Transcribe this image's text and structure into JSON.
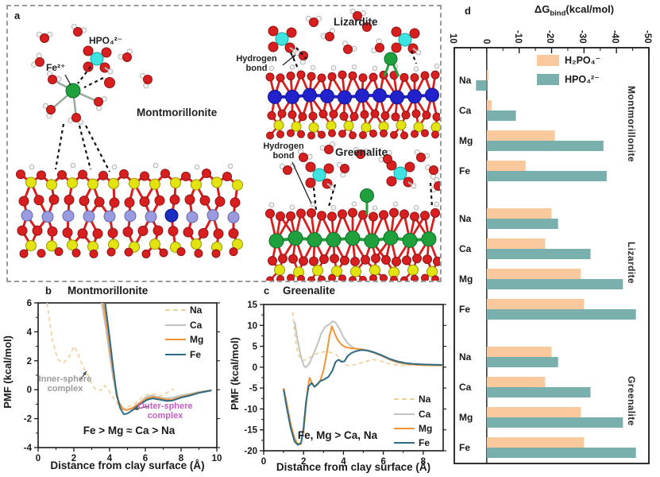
{
  "panel_a": {
    "label": "a",
    "minerals": {
      "montmorillonite": "Montmorillonite",
      "lizardite": "Lizardite",
      "greenalite": "Greenalite"
    },
    "molecule_labels": {
      "hpo4": "HPO₄²⁻",
      "fe": "Fe²⁺",
      "hydrogen_bond": "Hydrogen bond"
    },
    "atom_colors": {
      "oxygen": "#d81f1f",
      "hydrogen": "#f4f4f4",
      "silicon": "#e3e312",
      "aluminum": "#9a9ade",
      "magnesium": "#2222cc",
      "iron": "#1fa03c",
      "phosphorus": "#3fe3e0"
    }
  },
  "chart_data": [
    {
      "id": "b",
      "type": "line",
      "panel_label": "b",
      "title": "Montmorillonite",
      "xlabel": "Distance from clay surface (Å)",
      "ylabel": "PMF (kcal/mol)",
      "xlim": [
        0,
        10
      ],
      "ylim": [
        -4,
        6
      ],
      "xticks": [
        "0",
        "2",
        "4",
        "6",
        "8",
        "10"
      ],
      "yticks": [
        "6",
        "4",
        "2",
        "0",
        "-2",
        "-4"
      ],
      "legend_position": "top-right",
      "annotations": {
        "inner_sphere": "Inner-sphere complex",
        "outer_sphere": "Outer-sphere complex",
        "order": "Fe > Mg ≈ Ca > Na"
      },
      "annotation_colors": {
        "inner_sphere": "#9b9b9b",
        "outer_sphere": "#c45ec0",
        "order": "#1a1a1a"
      },
      "series": [
        {
          "name": "Na",
          "color": "#f0d09a",
          "dash": true,
          "points": [
            [
              0.5,
              6
            ],
            [
              0.8,
              3.4
            ],
            [
              1.1,
              2.1
            ],
            [
              1.4,
              1.85
            ],
            [
              1.7,
              2.2
            ],
            [
              2.0,
              3.0
            ],
            [
              2.2,
              2.6
            ],
            [
              2.5,
              1.6
            ],
            [
              2.8,
              1.0
            ],
            [
              3.0,
              0.4
            ],
            [
              3.2,
              0.05
            ],
            [
              3.5,
              -0.05
            ],
            [
              3.7,
              0.3
            ],
            [
              3.9,
              0.05
            ],
            [
              4.1,
              -0.35
            ],
            [
              4.4,
              -0.9
            ],
            [
              4.7,
              -1.3
            ],
            [
              5.0,
              -1.2
            ],
            [
              5.4,
              -1.0
            ],
            [
              5.8,
              -0.55
            ],
            [
              6.1,
              -0.35
            ],
            [
              6.5,
              -0.3
            ],
            [
              6.8,
              -0.45
            ],
            [
              7.1,
              -0.3
            ],
            [
              7.4,
              -0.05
            ],
            [
              7.6,
              0.05
            ]
          ]
        },
        {
          "name": "Ca",
          "color": "#c2c2c2",
          "dash": false,
          "points": [
            [
              3.55,
              6
            ],
            [
              3.8,
              4.2
            ],
            [
              4.0,
              2.4
            ],
            [
              4.2,
              0.8
            ],
            [
              4.4,
              -0.5
            ],
            [
              4.65,
              -1.2
            ],
            [
              4.9,
              -1.4
            ],
            [
              5.2,
              -1.35
            ],
            [
              5.6,
              -1.0
            ],
            [
              6.0,
              -0.55
            ],
            [
              6.3,
              -0.4
            ],
            [
              6.7,
              -0.5
            ],
            [
              7.1,
              -0.6
            ],
            [
              7.5,
              -0.55
            ],
            [
              8.0,
              -0.4
            ],
            [
              8.5,
              -0.28
            ],
            [
              9.0,
              -0.15
            ],
            [
              9.7,
              -0.02
            ]
          ]
        },
        {
          "name": "Mg",
          "color": "#f29436",
          "dash": false,
          "points": [
            [
              3.65,
              6
            ],
            [
              3.9,
              4.0
            ],
            [
              4.1,
              2.1
            ],
            [
              4.3,
              0.4
            ],
            [
              4.5,
              -0.8
            ],
            [
              4.75,
              -1.35
            ],
            [
              5.0,
              -1.4
            ],
            [
              5.3,
              -1.25
            ],
            [
              5.7,
              -0.9
            ],
            [
              6.1,
              -0.6
            ],
            [
              6.4,
              -0.5
            ],
            [
              6.8,
              -0.6
            ],
            [
              7.2,
              -0.7
            ],
            [
              7.5,
              -0.68
            ],
            [
              8.0,
              -0.5
            ],
            [
              8.5,
              -0.35
            ],
            [
              9.0,
              -0.2
            ],
            [
              9.7,
              -0.05
            ]
          ]
        },
        {
          "name": "Fe",
          "color": "#2e6b84",
          "dash": false,
          "points": [
            [
              3.75,
              6
            ],
            [
              4.0,
              3.6
            ],
            [
              4.2,
              1.5
            ],
            [
              4.4,
              -0.4
            ],
            [
              4.6,
              -1.3
            ],
            [
              4.8,
              -1.7
            ],
            [
              5.0,
              -1.65
            ],
            [
              5.3,
              -1.4
            ],
            [
              5.7,
              -1.0
            ],
            [
              6.1,
              -0.7
            ],
            [
              6.4,
              -0.6
            ],
            [
              6.8,
              -0.68
            ],
            [
              7.2,
              -0.78
            ],
            [
              7.5,
              -0.75
            ],
            [
              8.0,
              -0.55
            ],
            [
              8.5,
              -0.4
            ],
            [
              9.0,
              -0.22
            ],
            [
              9.7,
              -0.05
            ]
          ]
        }
      ]
    },
    {
      "id": "c",
      "type": "line",
      "panel_label": "c",
      "title": "Greenalite",
      "xlabel": "Distance from clay surface (Å)",
      "ylabel": "PMF (kcal/mol)",
      "xlim": [
        0,
        9
      ],
      "ylim": [
        -20,
        15
      ],
      "xticks": [
        "0",
        "2",
        "4",
        "6",
        "8"
      ],
      "yticks": [
        "15",
        "10",
        "5",
        "0",
        "-5",
        "-10",
        "-15",
        "-20"
      ],
      "legend_position": "bottom-right",
      "annotations": {
        "order": "Fe, Mg > Ca, Na"
      },
      "annotation_colors": {
        "order": "#1a1a1a"
      },
      "series": [
        {
          "name": "Na",
          "color": "#f0d09a",
          "dash": true,
          "points": [
            [
              1.45,
              13.2
            ],
            [
              1.55,
              8.5
            ],
            [
              1.7,
              3.5
            ],
            [
              1.85,
              1.8
            ],
            [
              2.0,
              1.6
            ],
            [
              2.2,
              2.0
            ],
            [
              2.5,
              2.9
            ],
            [
              2.8,
              3.5
            ],
            [
              3.1,
              3.7
            ],
            [
              3.4,
              3.5
            ],
            [
              3.6,
              3.2
            ],
            [
              3.8,
              2.2
            ],
            [
              4.0,
              1.0
            ],
            [
              4.2,
              0.4
            ],
            [
              4.5,
              0.5
            ],
            [
              4.8,
              0.9
            ],
            [
              5.2,
              1.5
            ],
            [
              5.5,
              1.8
            ],
            [
              5.8,
              1.6
            ],
            [
              6.1,
              1.1
            ],
            [
              6.5,
              0.6
            ],
            [
              7.0,
              0.4
            ],
            [
              7.5,
              0.5
            ],
            [
              8.0,
              0.4
            ],
            [
              8.5,
              0.45
            ],
            [
              9.0,
              0.4
            ]
          ]
        },
        {
          "name": "Ca",
          "color": "#c2c2c2",
          "dash": false,
          "points": [
            [
              1.55,
              10.8
            ],
            [
              1.7,
              6.5
            ],
            [
              1.85,
              2.8
            ],
            [
              2.0,
              0.5
            ],
            [
              2.1,
              -0.1
            ],
            [
              2.25,
              0.6
            ],
            [
              2.45,
              2.5
            ],
            [
              2.7,
              5.5
            ],
            [
              2.9,
              8.2
            ],
            [
              3.1,
              9.8
            ],
            [
              3.3,
              10.2
            ],
            [
              3.45,
              11.0
            ],
            [
              3.6,
              10.7
            ],
            [
              3.8,
              9.2
            ],
            [
              4.0,
              7.2
            ],
            [
              4.2,
              5.8
            ],
            [
              4.5,
              4.6
            ],
            [
              4.8,
              4.2
            ],
            [
              5.1,
              4.0
            ],
            [
              5.5,
              3.5
            ],
            [
              5.9,
              2.7
            ],
            [
              6.3,
              1.8
            ],
            [
              6.7,
              1.1
            ],
            [
              7.1,
              0.8
            ],
            [
              7.5,
              0.65
            ],
            [
              8.0,
              0.55
            ],
            [
              8.5,
              0.5
            ],
            [
              9.0,
              0.5
            ]
          ]
        },
        {
          "name": "Mg",
          "color": "#f29436",
          "dash": false,
          "points": [
            [
              1.0,
              -5.0
            ],
            [
              1.15,
              -8.5
            ],
            [
              1.35,
              -13.5
            ],
            [
              1.55,
              -17.0
            ],
            [
              1.7,
              -18.3
            ],
            [
              1.85,
              -18.5
            ],
            [
              2.0,
              -15.5
            ],
            [
              2.1,
              -10.5
            ],
            [
              2.2,
              -5.5
            ],
            [
              2.3,
              -2.5
            ],
            [
              2.4,
              -3.6
            ],
            [
              2.55,
              -4.6
            ],
            [
              2.7,
              -4.2
            ],
            [
              2.85,
              -3.0
            ],
            [
              3.0,
              -0.8
            ],
            [
              3.15,
              3.0
            ],
            [
              3.3,
              7.5
            ],
            [
              3.42,
              9.8
            ],
            [
              3.55,
              8.2
            ],
            [
              3.7,
              6.6
            ],
            [
              3.9,
              5.4
            ],
            [
              4.1,
              4.8
            ],
            [
              4.4,
              4.5
            ],
            [
              4.7,
              4.4
            ],
            [
              5.0,
              4.2
            ],
            [
              5.3,
              3.9
            ],
            [
              5.6,
              3.4
            ],
            [
              6.0,
              2.6
            ],
            [
              6.4,
              1.7
            ],
            [
              6.8,
              1.1
            ],
            [
              7.2,
              0.8
            ],
            [
              7.6,
              0.6
            ],
            [
              8.0,
              0.5
            ],
            [
              8.5,
              0.45
            ],
            [
              9.0,
              0.4
            ]
          ]
        },
        {
          "name": "Fe",
          "color": "#2e6b84",
          "dash": false,
          "points": [
            [
              1.0,
              -5.3
            ],
            [
              1.15,
              -9.5
            ],
            [
              1.35,
              -14.5
            ],
            [
              1.55,
              -17.8
            ],
            [
              1.72,
              -18.6
            ],
            [
              1.88,
              -18.0
            ],
            [
              2.0,
              -14.5
            ],
            [
              2.12,
              -8.5
            ],
            [
              2.25,
              -4.6
            ],
            [
              2.4,
              -3.8
            ],
            [
              2.55,
              -4.7
            ],
            [
              2.7,
              -4.0
            ],
            [
              2.85,
              -3.3
            ],
            [
              3.05,
              -2.9
            ],
            [
              3.25,
              -2.3
            ],
            [
              3.45,
              -0.8
            ],
            [
              3.6,
              1.2
            ],
            [
              3.75,
              1.8
            ],
            [
              3.9,
              1.3
            ],
            [
              4.05,
              1.4
            ],
            [
              4.2,
              2.6
            ],
            [
              4.4,
              3.4
            ],
            [
              4.6,
              3.8
            ],
            [
              4.9,
              4.1
            ],
            [
              5.2,
              4.0
            ],
            [
              5.5,
              3.6
            ],
            [
              5.9,
              2.9
            ],
            [
              6.3,
              2.0
            ],
            [
              6.7,
              1.4
            ],
            [
              7.1,
              1.0
            ],
            [
              7.5,
              0.8
            ],
            [
              8.0,
              0.65
            ],
            [
              8.5,
              0.6
            ],
            [
              9.0,
              0.55
            ]
          ]
        }
      ]
    },
    {
      "id": "d",
      "type": "bar",
      "panel_label": "d",
      "title": {
        "main": "ΔG",
        "sub": "bind",
        "units": "(kcal/mol)"
      },
      "unit": "kcal/mol",
      "axis_range": [
        10,
        -50
      ],
      "xlabel_ticks": [
        "10",
        "0",
        "-10",
        "-20",
        "-30",
        "-40",
        "-50"
      ],
      "legend": [
        {
          "label": "H₂PO₄⁻",
          "color": "#f9c89d"
        },
        {
          "label": "HPO₄²⁻",
          "color": "#79b0ad"
        }
      ],
      "groups": [
        {
          "mineral": "Montmorillonite",
          "rows": [
            {
              "ion": "Na",
              "h2po4": -0.5,
              "hpo4": 3.3
            },
            {
              "ion": "Ca",
              "h2po4": -1.5,
              "hpo4": -9
            },
            {
              "ion": "Mg",
              "h2po4": -21,
              "hpo4": -36
            },
            {
              "ion": "Fe",
              "h2po4": -12,
              "hpo4": -37
            }
          ]
        },
        {
          "mineral": "Lizardite",
          "rows": [
            {
              "ion": "Na",
              "h2po4": -20,
              "hpo4": -22
            },
            {
              "ion": "Ca",
              "h2po4": -18,
              "hpo4": -32
            },
            {
              "ion": "Mg",
              "h2po4": -29,
              "hpo4": -42
            },
            {
              "ion": "Fe",
              "h2po4": -30,
              "hpo4": -46
            }
          ]
        },
        {
          "mineral": "Greenalite",
          "rows": [
            {
              "ion": "Na",
              "h2po4": -20,
              "hpo4": -22
            },
            {
              "ion": "Ca",
              "h2po4": -18,
              "hpo4": -32
            },
            {
              "ion": "Mg",
              "h2po4": -29,
              "hpo4": -42
            },
            {
              "ion": "Fe",
              "h2po4": -30,
              "hpo4": -46
            }
          ]
        }
      ]
    }
  ]
}
